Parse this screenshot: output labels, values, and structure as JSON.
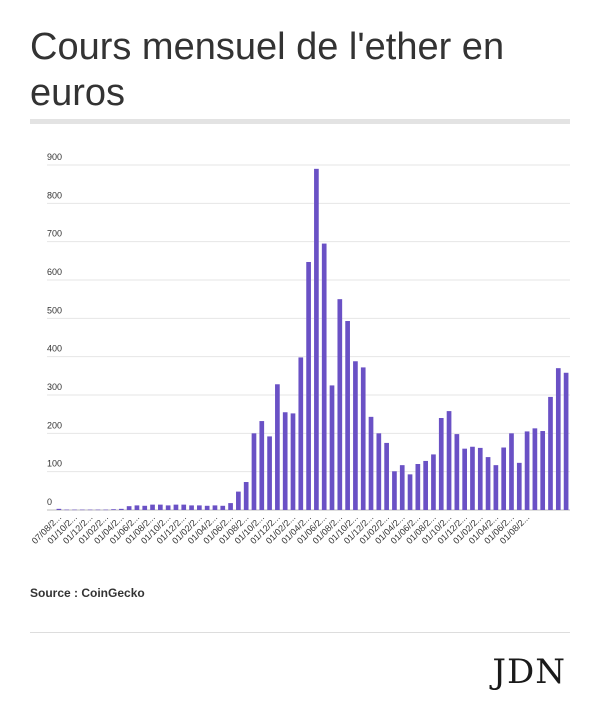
{
  "header": {
    "title": "Cours mensuel de l'ether en euros"
  },
  "footer": {
    "source": "Source : CoinGecko",
    "logo": "JDN"
  },
  "colors": {
    "bar": "#6a51c5",
    "grid": "#e6e6e6",
    "rule": "#e3e3e3"
  },
  "chart_data": {
    "type": "bar",
    "title": "Cours mensuel de l'ether en euros",
    "ylim": [
      0,
      900
    ],
    "yticks": [
      0,
      100,
      200,
      300,
      400,
      500,
      600,
      700,
      800,
      900
    ],
    "xtick_labels": [
      "07/08/2...",
      "01/10/2...",
      "01/12/2...",
      "01/02/2...",
      "01/04/2...",
      "01/06/2...",
      "01/08/2...",
      "01/10/2...",
      "01/12/2...",
      "01/02/2...",
      "01/04/2...",
      "01/06/2...",
      "01/08/2...",
      "01/10/2...",
      "01/12/2...",
      "01/02/2...",
      "01/04/2...",
      "01/06/2...",
      "01/08/2...",
      "01/10/2...",
      "01/12/2...",
      "01/02/2...",
      "01/04/2...",
      "01/06/2...",
      "01/08/2...",
      "01/10/2...",
      "01/12/2...",
      "01/02/2...",
      "01/04/2...",
      "01/06/2...",
      "01/08/2..."
    ],
    "values": [
      3,
      1,
      1,
      1,
      1,
      1,
      1,
      2,
      3,
      10,
      12,
      11,
      14,
      14,
      12,
      14,
      14,
      12,
      12,
      11,
      12,
      11,
      18,
      48,
      73,
      200,
      232,
      192,
      328,
      255,
      252,
      398,
      647,
      890,
      695,
      325,
      550,
      493,
      388,
      372,
      243,
      200,
      175,
      101,
      117,
      93,
      120,
      128,
      145,
      240,
      258,
      198,
      160,
      165,
      162,
      138,
      117,
      163,
      200,
      123,
      205,
      213,
      206,
      295,
      370,
      358
    ]
  }
}
